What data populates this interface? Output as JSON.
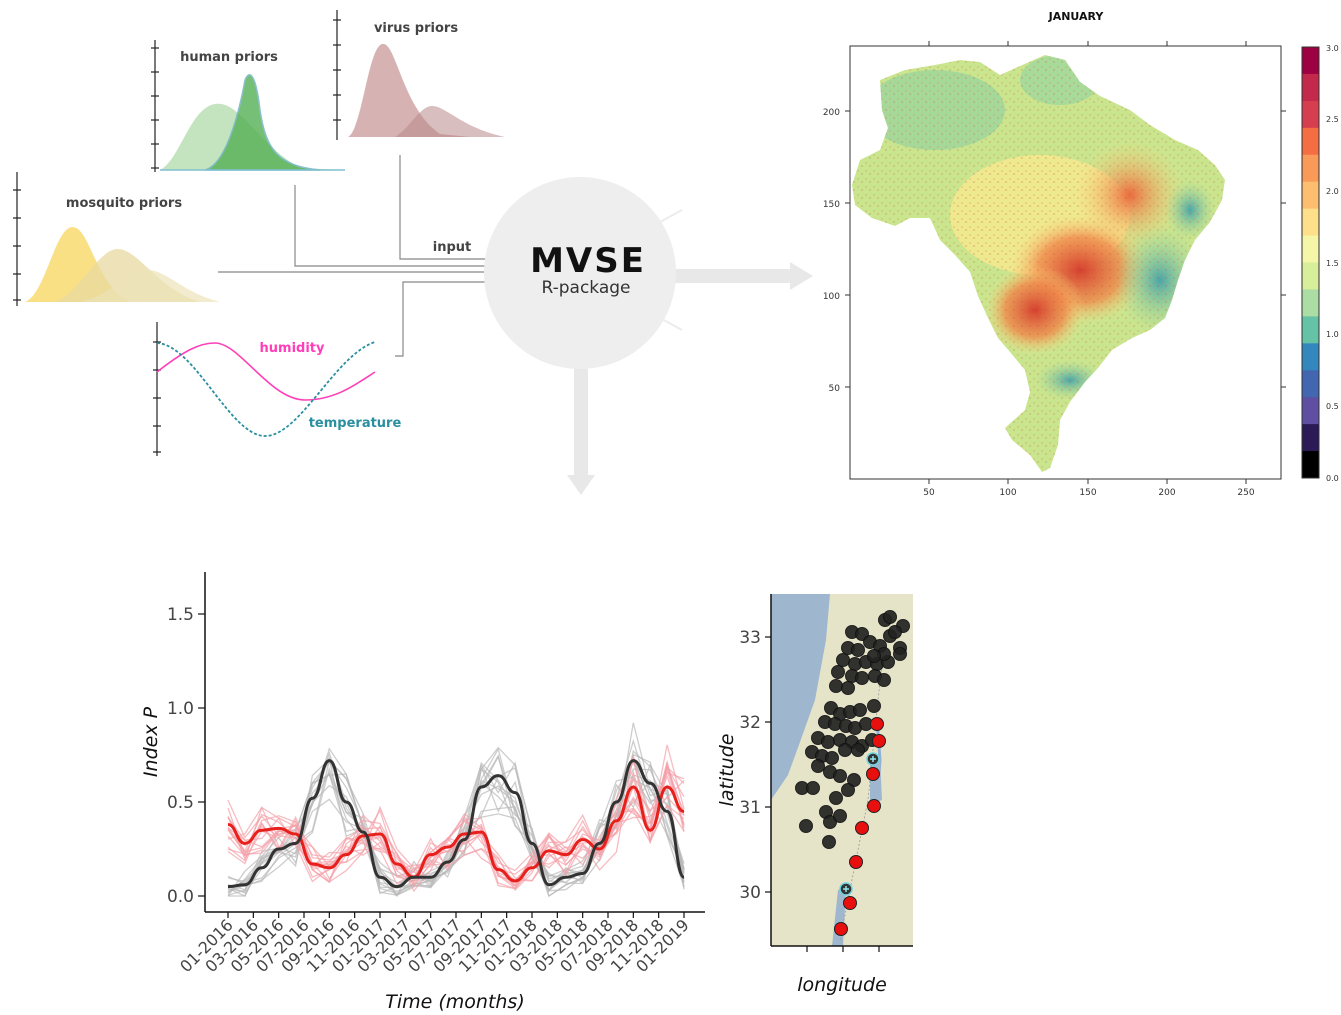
{
  "workflow": {
    "human_priors_label": "human priors",
    "virus_priors_label": "virus priors",
    "mosquito_priors_label": "mosquito priors",
    "humidity_label": "humidity",
    "temperature_label": "temperature",
    "input_label": "input",
    "package_name": "MVSE",
    "package_sub": "R-package",
    "colors": {
      "human": "#6fbf6f",
      "virus": "#b87d7d",
      "mosquito": "#f0d060",
      "humidity": "#ff3fb8",
      "temperature": "#2a8fa0",
      "arrow": "#e6e6e6"
    }
  },
  "map_panel": {
    "title": "JANUARY",
    "x_ticks": [
      "50",
      "100",
      "150",
      "200",
      "250"
    ],
    "y_ticks": [
      "200",
      "150",
      "100",
      "50"
    ],
    "colorbar_ticks": [
      "3.0",
      "2.5",
      "2.0",
      "1.5",
      "1.0",
      "0.5",
      "0.0"
    ],
    "colorbar_colors": [
      "#9e0142",
      "#c2294a",
      "#d53e4f",
      "#f46d43",
      "#fa9a58",
      "#fdbe6f",
      "#fee08b",
      "#f5f6a8",
      "#d7ee9b",
      "#abdda4",
      "#66c2a5",
      "#3288bd",
      "#4266b0",
      "#5e4fa2",
      "#2b1a55",
      "#000000"
    ]
  },
  "chart_data": [
    {
      "type": "line",
      "title": "",
      "xlabel": "Time (months)",
      "ylabel": "Index P",
      "ylim": [
        0,
        1.7
      ],
      "y_ticks": [
        "0.0",
        "0.5",
        "1.0",
        "1.5"
      ],
      "x_ticks": [
        "01-2016",
        "03-2016",
        "05-2016",
        "07-2016",
        "09-2016",
        "11-2016",
        "01-2017",
        "03-2017",
        "05-2017",
        "07-2017",
        "09-2017",
        "11-2017",
        "01-2018",
        "03-2018",
        "05-2018",
        "07-2018",
        "09-2018",
        "11-2018",
        "01-2019"
      ],
      "series": [
        {
          "color": "#e8201c",
          "values": [
            0.38,
            0.28,
            0.35,
            0.36,
            0.33,
            0.17,
            0.15,
            0.22,
            0.32,
            0.33,
            0.17,
            0.1,
            0.22,
            0.26,
            0.33,
            0.34,
            0.14,
            0.08,
            0.15,
            0.24,
            0.22,
            0.3,
            0.25,
            0.4,
            0.58,
            0.35,
            0.58,
            0.45
          ]
        },
        {
          "color": "#333333",
          "values": [
            0.05,
            0.06,
            0.15,
            0.25,
            0.28,
            0.52,
            0.72,
            0.5,
            0.34,
            0.1,
            0.05,
            0.1,
            0.1,
            0.18,
            0.3,
            0.58,
            0.64,
            0.55,
            0.28,
            0.06,
            0.1,
            0.12,
            0.28,
            0.5,
            0.72,
            0.6,
            0.45,
            0.1
          ]
        }
      ]
    },
    {
      "type": "scatter",
      "title": "",
      "xlabel": "longitude",
      "ylabel": "latitude",
      "y_ticks": [
        "33",
        "32",
        "31",
        "30"
      ],
      "ylim": [
        29.5,
        33.5
      ]
    }
  ]
}
